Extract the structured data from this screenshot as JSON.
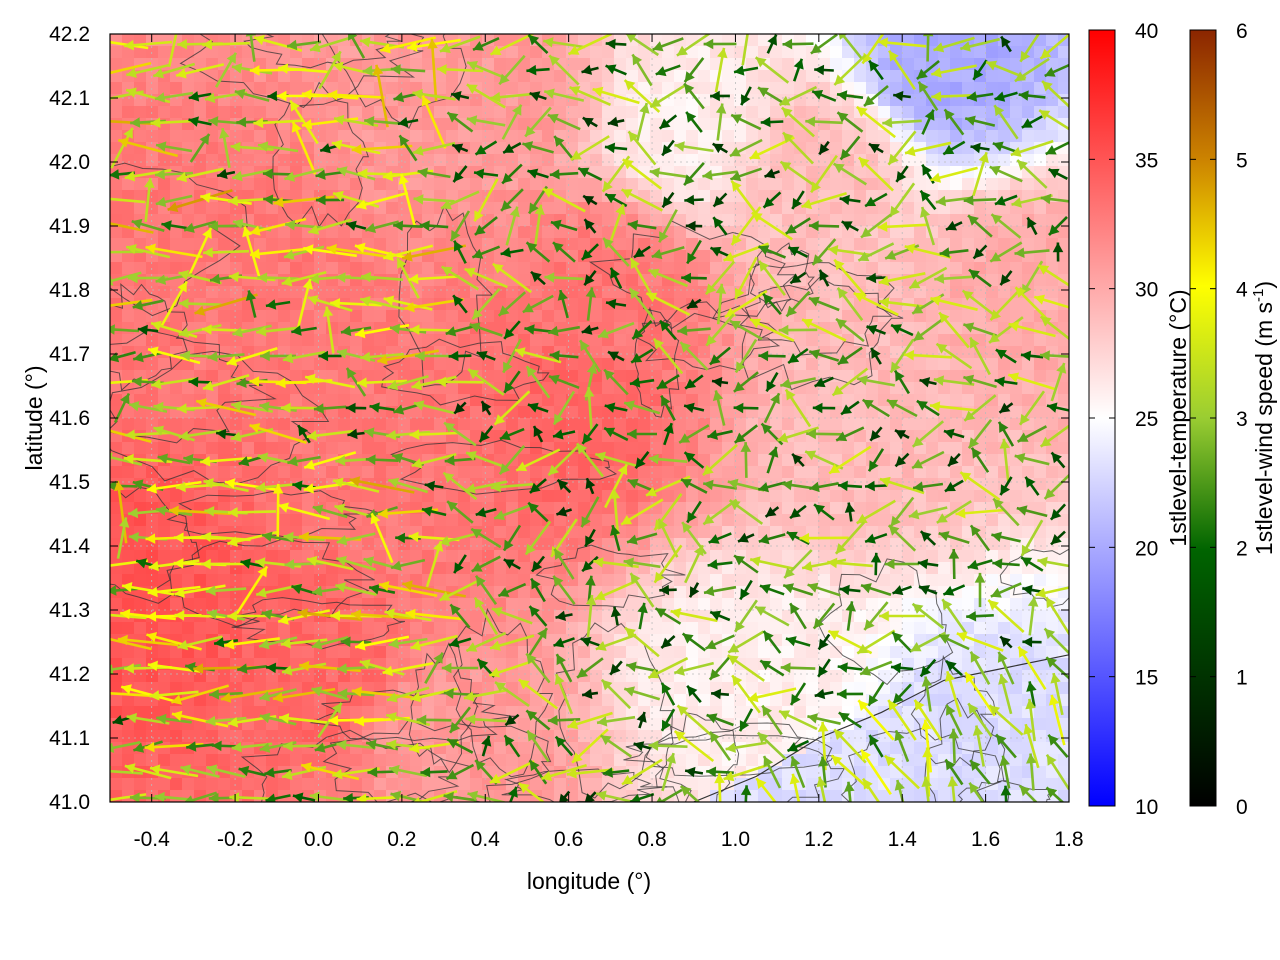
{
  "chart_data": {
    "type": "heatmap",
    "title": "",
    "xlabel": "longitude (°)",
    "ylabel": "latitude (°)",
    "xlim": [
      -0.5,
      1.8
    ],
    "ylim": [
      41.0,
      42.2
    ],
    "x_ticks": [
      "-0.4",
      "-0.2",
      "0.0",
      "0.2",
      "0.4",
      "0.6",
      "0.8",
      "1.0",
      "1.2",
      "1.4",
      "1.6",
      "1.8"
    ],
    "x_tick_values": [
      -0.4,
      -0.2,
      0.0,
      0.2,
      0.4,
      0.6,
      0.8,
      1.0,
      1.2,
      1.4,
      1.6,
      1.8
    ],
    "y_ticks": [
      "41.0",
      "41.1",
      "41.2",
      "41.3",
      "41.4",
      "41.5",
      "41.6",
      "41.7",
      "41.8",
      "41.9",
      "42.0",
      "42.1",
      "42.2"
    ],
    "y_tick_values": [
      41.0,
      41.1,
      41.2,
      41.3,
      41.4,
      41.5,
      41.6,
      41.7,
      41.8,
      41.9,
      42.0,
      42.1,
      42.2
    ],
    "grid": true,
    "temperature_colorbar": {
      "label": "1stlevel-temperature (°C)",
      "range": [
        10,
        40
      ],
      "ticks": [
        "10",
        "15",
        "20",
        "25",
        "30",
        "35",
        "40"
      ],
      "tick_values": [
        10,
        15,
        20,
        25,
        30,
        35,
        40
      ],
      "colors": [
        "#0000ff",
        "#ffffff",
        "#ff0000"
      ]
    },
    "wind_colorbar": {
      "label_main": "1stlevel-wind speed (m s",
      "label_sup": "-1",
      "label_end": ")",
      "range": [
        0,
        6
      ],
      "ticks": [
        "0",
        "1",
        "2",
        "3",
        "4",
        "5",
        "6"
      ],
      "tick_values": [
        0,
        1,
        2,
        3,
        4,
        5,
        6
      ],
      "colors": [
        "#000000",
        "#006400",
        "#9acd32",
        "#ffff00",
        "#cd8500",
        "#8b2500"
      ]
    },
    "temperature_field": {
      "description_values_degC": [
        {
          "lon": -0.4,
          "lat": 41.3,
          "t": 35
        },
        {
          "lon": -0.2,
          "lat": 41.8,
          "t": 33
        },
        {
          "lon": 0.2,
          "lat": 41.5,
          "t": 33
        },
        {
          "lon": 0.6,
          "lat": 41.6,
          "t": 34
        },
        {
          "lon": 0.7,
          "lat": 41.8,
          "t": 33
        },
        {
          "lon": 0.4,
          "lat": 42.1,
          "t": 31
        },
        {
          "lon": 1.0,
          "lat": 41.2,
          "t": 26
        },
        {
          "lon": 0.9,
          "lat": 42.05,
          "t": 26
        },
        {
          "lon": 1.5,
          "lat": 42.15,
          "t": 20
        },
        {
          "lon": 1.6,
          "lat": 41.1,
          "t": 23
        },
        {
          "lon": 1.3,
          "lat": 41.6,
          "t": 29
        },
        {
          "lon": 1.7,
          "lat": 41.8,
          "t": 30
        },
        {
          "lon": 0.0,
          "lat": 41.2,
          "t": 34
        },
        {
          "lon": 0.3,
          "lat": 41.1,
          "t": 31
        },
        {
          "lon": 1.2,
          "lat": 42.0,
          "t": 29
        }
      ],
      "sea_region_temp": 23,
      "sea_boundary": [
        {
          "lon": 0.9,
          "lat": 41.0
        },
        {
          "lon": 1.05,
          "lat": 41.04
        },
        {
          "lon": 1.2,
          "lat": 41.1
        },
        {
          "lon": 1.35,
          "lat": 41.14
        },
        {
          "lon": 1.5,
          "lat": 41.19
        },
        {
          "lon": 1.65,
          "lat": 41.21
        },
        {
          "lon": 1.8,
          "lat": 41.23
        }
      ]
    }
  }
}
